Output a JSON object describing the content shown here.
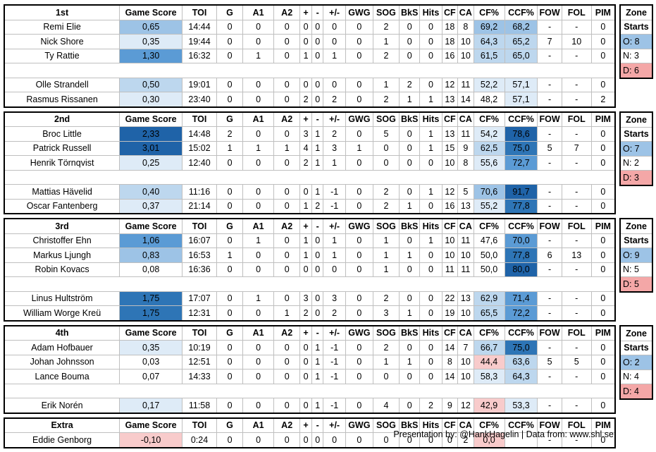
{
  "headers": {
    "gs": "Game Score",
    "toi": "TOI",
    "g": "G",
    "a1": "A1",
    "a2": "A2",
    "plus": "+",
    "minus": "-",
    "pm": "+/-",
    "gwg": "GWG",
    "sog": "SOG",
    "bks": "BkS",
    "hits": "Hits",
    "cf": "CF",
    "ca": "CA",
    "cfp": "CF%",
    "ccfp": "CCF%",
    "fow": "FOW",
    "fol": "FOL",
    "pim": "PIM"
  },
  "zone_title": [
    "Zone",
    "Starts"
  ],
  "colors": {
    "cf_low": "#f8cbcb",
    "gs_high": "#1f63a8",
    "zone_o": "#9dc3e6",
    "zone_d": "#f4a7a7"
  },
  "lines": [
    {
      "title": "1st",
      "zone": {
        "o": "O: 8",
        "n": "N: 3",
        "d": "D: 6"
      },
      "forwards": [
        {
          "name": "Remi Elie",
          "gs": "0,65",
          "toi": "14:44",
          "g": "0",
          "a1": "0",
          "a2": "0",
          "plus": "0",
          "minus": "0",
          "pm": "0",
          "gwg": "0",
          "sog": "2",
          "bks": "0",
          "hits": "0",
          "cf": "18",
          "ca": "8",
          "cfp": "69,2",
          "ccfp": "68,2",
          "fow": "-",
          "fol": "-",
          "pim": "0",
          "gsl": 3,
          "cfl": 3,
          "ccfl": 3
        },
        {
          "name": "Nick Shore",
          "gs": "0,35",
          "toi": "19:44",
          "g": "0",
          "a1": "0",
          "a2": "0",
          "plus": "0",
          "minus": "0",
          "pm": "0",
          "gwg": "0",
          "sog": "1",
          "bks": "0",
          "hits": "0",
          "cf": "18",
          "ca": "10",
          "cfp": "64,3",
          "ccfp": "65,2",
          "fow": "7",
          "fol": "10",
          "pim": "0",
          "gsl": 1,
          "cfl": 2,
          "ccfl": 2
        },
        {
          "name": "Ty Rattie",
          "gs": "1,30",
          "toi": "16:32",
          "g": "0",
          "a1": "1",
          "a2": "0",
          "plus": "1",
          "minus": "0",
          "pm": "1",
          "gwg": "0",
          "sog": "2",
          "bks": "0",
          "hits": "0",
          "cf": "16",
          "ca": "10",
          "cfp": "61,5",
          "ccfp": "65,0",
          "fow": "-",
          "fol": "-",
          "pim": "0",
          "gsl": 4,
          "cfl": 2,
          "ccfl": 2
        }
      ],
      "defense": [
        {
          "name": "Olle Strandell",
          "gs": "0,50",
          "toi": "19:01",
          "g": "0",
          "a1": "0",
          "a2": "0",
          "plus": "0",
          "minus": "0",
          "pm": "0",
          "gwg": "0",
          "sog": "1",
          "bks": "2",
          "hits": "0",
          "cf": "12",
          "ca": "11",
          "cfp": "52,2",
          "ccfp": "57,1",
          "fow": "-",
          "fol": "-",
          "pim": "0",
          "gsl": 2,
          "cfl": 1,
          "ccfl": 1
        },
        {
          "name": "Rasmus Rissanen",
          "gs": "0,30",
          "toi": "23:40",
          "g": "0",
          "a1": "0",
          "a2": "0",
          "plus": "2",
          "minus": "0",
          "pm": "2",
          "gwg": "0",
          "sog": "2",
          "bks": "1",
          "hits": "1",
          "cf": "13",
          "ca": "14",
          "cfp": "48,2",
          "ccfp": "57,1",
          "fow": "-",
          "fol": "-",
          "pim": "2",
          "gsl": 1,
          "cfl": 0,
          "ccfl": 1
        }
      ]
    },
    {
      "title": "2nd",
      "zone": {
        "o": "O: 7",
        "n": "N: 2",
        "d": "D: 3"
      },
      "forwards": [
        {
          "name": "Broc Little",
          "gs": "2,33",
          "toi": "14:48",
          "g": "2",
          "a1": "0",
          "a2": "0",
          "plus": "3",
          "minus": "1",
          "pm": "2",
          "gwg": "0",
          "sog": "5",
          "bks": "0",
          "hits": "1",
          "cf": "13",
          "ca": "11",
          "cfp": "54,2",
          "ccfp": "78,6",
          "fow": "-",
          "fol": "-",
          "pim": "0",
          "gsl": 6,
          "cfl": 1,
          "ccfl": 6
        },
        {
          "name": "Patrick Russell",
          "gs": "3,01",
          "toi": "15:02",
          "g": "1",
          "a1": "1",
          "a2": "1",
          "plus": "4",
          "minus": "1",
          "pm": "3",
          "gwg": "1",
          "sog": "0",
          "bks": "0",
          "hits": "1",
          "cf": "15",
          "ca": "9",
          "cfp": "62,5",
          "ccfp": "75,0",
          "fow": "5",
          "fol": "7",
          "pim": "0",
          "gsl": 6,
          "cfl": 2,
          "ccfl": 5
        },
        {
          "name": "Henrik Törnqvist",
          "gs": "0,25",
          "toi": "12:40",
          "g": "0",
          "a1": "0",
          "a2": "0",
          "plus": "2",
          "minus": "1",
          "pm": "1",
          "gwg": "0",
          "sog": "0",
          "bks": "0",
          "hits": "0",
          "cf": "10",
          "ca": "8",
          "cfp": "55,6",
          "ccfp": "72,7",
          "fow": "-",
          "fol": "-",
          "pim": "0",
          "gsl": 1,
          "cfl": 1,
          "ccfl": 4
        }
      ],
      "defense": [
        {
          "name": "Mattias Hävelid",
          "gs": "0,40",
          "toi": "11:16",
          "g": "0",
          "a1": "0",
          "a2": "0",
          "plus": "0",
          "minus": "1",
          "pm": "-1",
          "gwg": "0",
          "sog": "2",
          "bks": "0",
          "hits": "1",
          "cf": "12",
          "ca": "5",
          "cfp": "70,6",
          "ccfp": "91,7",
          "fow": "-",
          "fol": "-",
          "pim": "0",
          "gsl": 2,
          "cfl": 3,
          "ccfl": 6
        },
        {
          "name": "Oscar Fantenberg",
          "gs": "0,37",
          "toi": "21:14",
          "g": "0",
          "a1": "0",
          "a2": "0",
          "plus": "1",
          "minus": "2",
          "pm": "-1",
          "gwg": "0",
          "sog": "2",
          "bks": "1",
          "hits": "0",
          "cf": "16",
          "ca": "13",
          "cfp": "55,2",
          "ccfp": "77,8",
          "fow": "-",
          "fol": "-",
          "pim": "0",
          "gsl": 1,
          "cfl": 1,
          "ccfl": 5
        }
      ]
    },
    {
      "title": "3rd",
      "zone": {
        "o": "O: 9",
        "n": "N: 5",
        "d": "D: 5"
      },
      "forwards": [
        {
          "name": "Christoffer Ehn",
          "gs": "1,06",
          "toi": "16:07",
          "g": "0",
          "a1": "1",
          "a2": "0",
          "plus": "1",
          "minus": "0",
          "pm": "1",
          "gwg": "0",
          "sog": "1",
          "bks": "0",
          "hits": "1",
          "cf": "10",
          "ca": "11",
          "cfp": "47,6",
          "ccfp": "70,0",
          "fow": "-",
          "fol": "-",
          "pim": "0",
          "gsl": 4,
          "cfl": 0,
          "ccfl": 4
        },
        {
          "name": "Markus Ljungh",
          "gs": "0,83",
          "toi": "16:53",
          "g": "1",
          "a1": "0",
          "a2": "0",
          "plus": "1",
          "minus": "0",
          "pm": "1",
          "gwg": "0",
          "sog": "1",
          "bks": "1",
          "hits": "0",
          "cf": "10",
          "ca": "10",
          "cfp": "50,0",
          "ccfp": "77,8",
          "fow": "6",
          "fol": "13",
          "pim": "0",
          "gsl": 3,
          "cfl": 0,
          "ccfl": 5
        },
        {
          "name": "Robin Kovacs",
          "gs": "0,08",
          "toi": "16:36",
          "g": "0",
          "a1": "0",
          "a2": "0",
          "plus": "0",
          "minus": "0",
          "pm": "0",
          "gwg": "0",
          "sog": "1",
          "bks": "0",
          "hits": "0",
          "cf": "11",
          "ca": "11",
          "cfp": "50,0",
          "ccfp": "80,0",
          "fow": "-",
          "fol": "-",
          "pim": "0",
          "gsl": 0,
          "cfl": 0,
          "ccfl": 6
        }
      ],
      "defense": [
        {
          "name": "Linus Hultström",
          "gs": "1,75",
          "toi": "17:07",
          "g": "0",
          "a1": "1",
          "a2": "0",
          "plus": "3",
          "minus": "0",
          "pm": "3",
          "gwg": "0",
          "sog": "2",
          "bks": "0",
          "hits": "0",
          "cf": "22",
          "ca": "13",
          "cfp": "62,9",
          "ccfp": "71,4",
          "fow": "-",
          "fol": "-",
          "pim": "0",
          "gsl": 5,
          "cfl": 2,
          "ccfl": 4
        },
        {
          "name": "William Worge Kreü",
          "gs": "1,75",
          "toi": "12:31",
          "g": "0",
          "a1": "0",
          "a2": "1",
          "plus": "2",
          "minus": "0",
          "pm": "2",
          "gwg": "0",
          "sog": "3",
          "bks": "1",
          "hits": "0",
          "cf": "19",
          "ca": "10",
          "cfp": "65,5",
          "ccfp": "72,2",
          "fow": "-",
          "fol": "-",
          "pim": "0",
          "gsl": 5,
          "cfl": 2,
          "ccfl": 4
        }
      ]
    },
    {
      "title": "4th",
      "zone": {
        "o": "O: 2",
        "n": "N: 4",
        "d": "D: 4"
      },
      "forwards": [
        {
          "name": "Adam Hofbauer",
          "gs": "0,35",
          "toi": "10:19",
          "g": "0",
          "a1": "0",
          "a2": "0",
          "plus": "0",
          "minus": "1",
          "pm": "-1",
          "gwg": "0",
          "sog": "2",
          "bks": "0",
          "hits": "0",
          "cf": "14",
          "ca": "7",
          "cfp": "66,7",
          "ccfp": "75,0",
          "fow": "-",
          "fol": "-",
          "pim": "0",
          "gsl": 1,
          "cfl": 2,
          "ccfl": 5
        },
        {
          "name": "Johan Johnsson",
          "gs": "0,03",
          "toi": "12:51",
          "g": "0",
          "a1": "0",
          "a2": "0",
          "plus": "0",
          "minus": "1",
          "pm": "-1",
          "gwg": "0",
          "sog": "1",
          "bks": "1",
          "hits": "0",
          "cf": "8",
          "ca": "10",
          "cfp": "44,4",
          "ccfp": "63,6",
          "fow": "5",
          "fol": "5",
          "pim": "0",
          "gsl": 0,
          "cfl": -1,
          "ccfl": 2
        },
        {
          "name": "Lance Bouma",
          "gs": "0,07",
          "toi": "14:33",
          "g": "0",
          "a1": "0",
          "a2": "0",
          "plus": "0",
          "minus": "1",
          "pm": "-1",
          "gwg": "0",
          "sog": "0",
          "bks": "0",
          "hits": "0",
          "cf": "14",
          "ca": "10",
          "cfp": "58,3",
          "ccfp": "64,3",
          "fow": "-",
          "fol": "-",
          "pim": "0",
          "gsl": 0,
          "cfl": 1,
          "ccfl": 2
        }
      ],
      "defense": [
        {
          "name": "Erik Norén",
          "gs": "0,17",
          "toi": "11:58",
          "g": "0",
          "a1": "0",
          "a2": "0",
          "plus": "0",
          "minus": "1",
          "pm": "-1",
          "gwg": "0",
          "sog": "4",
          "bks": "0",
          "hits": "2",
          "cf": "9",
          "ca": "12",
          "cfp": "42,9",
          "ccfp": "53,3",
          "fow": "-",
          "fol": "-",
          "pim": "0",
          "gsl": 1,
          "cfl": -1,
          "ccfl": 1
        }
      ]
    }
  ],
  "extra": {
    "title": "Extra",
    "players": [
      {
        "name": "Eddie Genborg",
        "gs": "-0,10",
        "toi": "0:24",
        "g": "0",
        "a1": "0",
        "a2": "0",
        "plus": "0",
        "minus": "0",
        "pm": "0",
        "gwg": "0",
        "sog": "0",
        "bks": "0",
        "hits": "0",
        "cf": "0",
        "ca": "2",
        "cfp": "0,0",
        "ccfp": "",
        "fow": "-",
        "fol": "-",
        "pim": "0",
        "gsl": -1,
        "cfl": -2,
        "ccfl": 0
      }
    ]
  },
  "footer": "Presentation by: @HankHagelin | Data from: www.shl.se"
}
